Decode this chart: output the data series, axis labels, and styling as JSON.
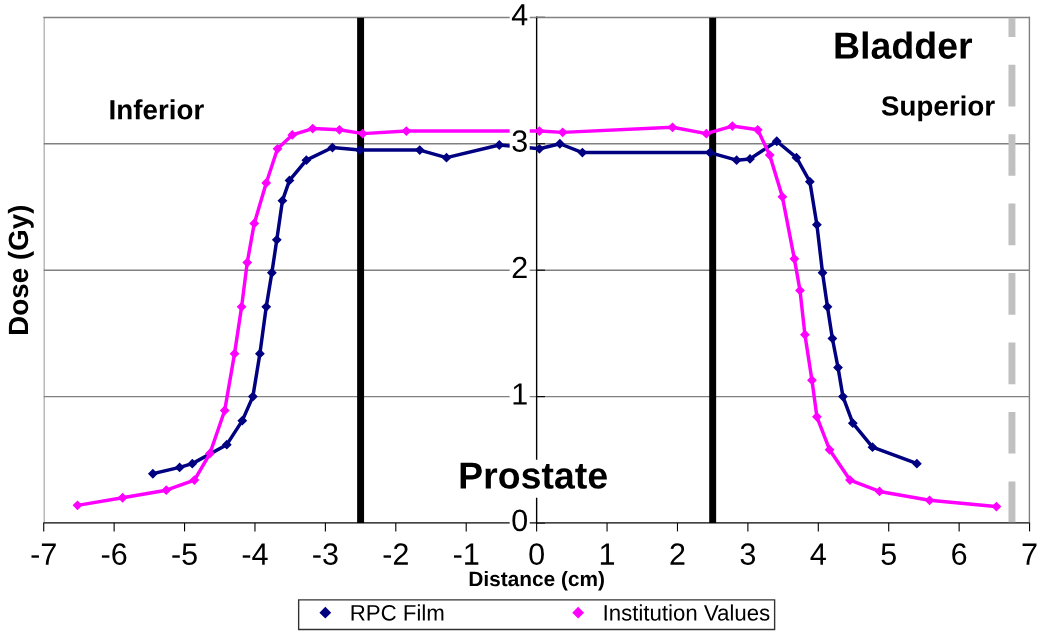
{
  "chart_data": {
    "type": "line",
    "xlabel": "Distance (cm)",
    "ylabel": "Dose (Gy)",
    "xlim": [
      -7,
      7
    ],
    "xticks": [
      -7,
      -6,
      -5,
      -4,
      -3,
      -2,
      -1,
      0,
      1,
      2,
      3,
      4,
      5,
      6,
      7
    ],
    "ylim": [
      0,
      4
    ],
    "yticks": [
      0,
      1,
      2,
      3,
      4
    ],
    "grid": "y",
    "legend": "bottom",
    "marker": "diamond",
    "annotations": [
      "Inferior",
      "Bladder",
      "Superior",
      "Prostate"
    ],
    "ref_lines": [
      {
        "axis": "x",
        "value": -2.5,
        "color": "#000000",
        "line_style": "solid"
      },
      {
        "axis": "x",
        "value": 2.5,
        "color": "#000000",
        "line_style": "solid"
      },
      {
        "axis": "x",
        "value": 6.75,
        "color": "#c0c0c0",
        "line_style": "dashed"
      }
    ],
    "series": [
      {
        "name": "RPC Film",
        "color": "#000080",
        "x": [
          -5.45,
          -5.07,
          -4.89,
          -4.4,
          -4.18,
          -4.03,
          -3.93,
          -3.84,
          -3.76,
          -3.69,
          -3.61,
          -3.51,
          -3.27,
          -2.9,
          -2.51,
          -1.66,
          -1.28,
          -0.53,
          0.04,
          0.33,
          0.65,
          2.46,
          2.84,
          3.03,
          3.41,
          3.69,
          3.88,
          3.98,
          4.06,
          4.13,
          4.2,
          4.28,
          4.35,
          4.49,
          4.77,
          5.4
        ],
        "values": [
          0.39,
          0.44,
          0.47,
          0.62,
          0.81,
          1.0,
          1.34,
          1.71,
          1.98,
          2.24,
          2.55,
          2.71,
          2.87,
          2.97,
          2.95,
          2.95,
          2.89,
          2.99,
          2.96,
          3.0,
          2.93,
          2.93,
          2.87,
          2.88,
          3.02,
          2.89,
          2.7,
          2.36,
          1.98,
          1.71,
          1.46,
          1.23,
          1.0,
          0.79,
          0.6,
          0.47
        ]
      },
      {
        "name": "Institution Values",
        "color": "#ff00ff",
        "x": [
          -6.52,
          -5.88,
          -5.26,
          -4.86,
          -4.64,
          -4.43,
          -4.29,
          -4.19,
          -4.11,
          -4.01,
          -3.84,
          -3.68,
          -3.47,
          -3.18,
          -2.8,
          -2.47,
          -1.85,
          0.04,
          0.37,
          1.93,
          2.41,
          2.78,
          3.14,
          3.31,
          3.49,
          3.66,
          3.74,
          3.81,
          3.91,
          3.98,
          4.16,
          4.45,
          4.87,
          5.58,
          6.53
        ],
        "values": [
          0.14,
          0.2,
          0.26,
          0.34,
          0.55,
          0.89,
          1.34,
          1.71,
          2.06,
          2.37,
          2.69,
          2.96,
          3.07,
          3.12,
          3.11,
          3.08,
          3.1,
          3.1,
          3.09,
          3.13,
          3.08,
          3.14,
          3.11,
          2.91,
          2.58,
          2.09,
          1.84,
          1.49,
          1.13,
          0.84,
          0.58,
          0.34,
          0.25,
          0.18,
          0.13
        ]
      }
    ]
  }
}
